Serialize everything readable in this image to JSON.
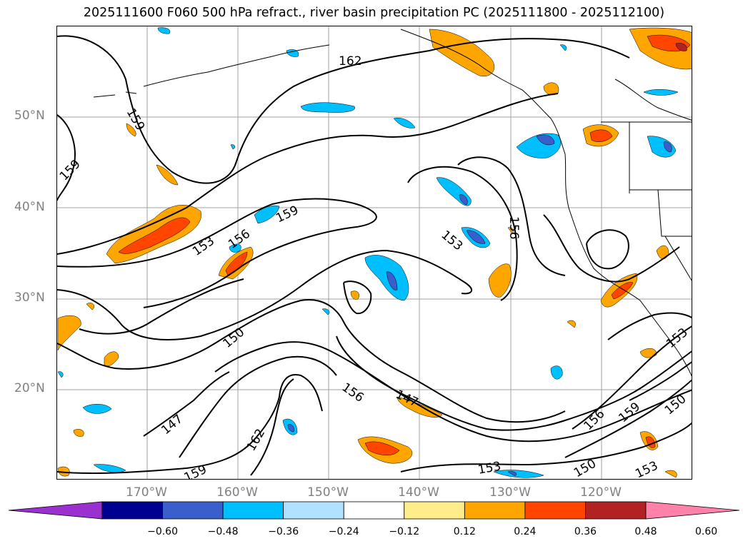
{
  "title": "2025111600 F060 500 hPa refract., river basin precipitation PC (2025111800 - 2025112100)",
  "lat_labels": [
    "50°N",
    "40°N",
    "30°N",
    "20°N"
  ],
  "lon_labels": [
    "170°W",
    "160°W",
    "150°W",
    "140°W",
    "130°W",
    "120°W"
  ],
  "contour_labels": [
    "162",
    "159",
    "159",
    "159",
    "156",
    "153",
    "153",
    "156",
    "150",
    "147",
    "147",
    "156",
    "162",
    "159",
    "153",
    "150",
    "153",
    "150",
    "153",
    "156",
    "159"
  ],
  "colorbar": {
    "tick_labels": [
      "−0.60",
      "−0.48",
      "−0.36",
      "−0.24",
      "−0.12",
      "0.12",
      "0.24",
      "0.36",
      "0.48",
      "0.60"
    ],
    "colors": [
      "#9b30d0",
      "#000090",
      "#3a5fcd",
      "#00bfff",
      "#b0e2ff",
      "#ffffff",
      "#ffec8b",
      "#ffa500",
      "#ff4500",
      "#b22222",
      "#ff82ab"
    ]
  },
  "colors": {
    "contour": "#000000",
    "grid": "#a0a0a0",
    "axis_text": "#808080",
    "coast": "#000000"
  }
}
